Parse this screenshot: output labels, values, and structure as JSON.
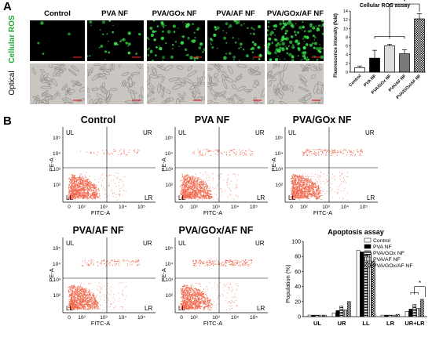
{
  "panelA": {
    "letter": "A",
    "columns": [
      "Control",
      "PVA NF",
      "PVA/GOx NF",
      "PVA/AF NF",
      "PVA/GOx/AF NF"
    ],
    "row_ros": "Cellular ROS",
    "row_optical": "Optical",
    "colors": {
      "ros_label": "#22aa33",
      "fluorescence": "#39e04a",
      "scale_bar": "#dd2222"
    }
  },
  "panelB": {
    "letter": "B",
    "flow_titles": [
      "Control",
      "PVA NF",
      "PVA/GOx NF",
      "PVA/AF NF",
      "PVA/GOx/AF NF"
    ],
    "quadrants": {
      "ul": "UL",
      "ur": "UR",
      "ll": "LL",
      "lr": "LR"
    },
    "xlabel": "FITC-A",
    "ylabel": "PE-A",
    "ticks": {
      "t0": "0",
      "t2": "10²",
      "t3": "10³",
      "t4": "10⁴",
      "t5": "10⁵"
    },
    "dot_color": "#f26a4f"
  },
  "chart_data": [
    {
      "type": "bar",
      "title": "Cellular ROS assay",
      "ylabel": "Fluorescence intensity (fold)",
      "ylim": [
        0,
        14
      ],
      "yticks": [
        0,
        2,
        4,
        6,
        8,
        10,
        12,
        14
      ],
      "categories": [
        "Control",
        "PVA NF",
        "PVA/GOx NF",
        "PVA/AF NF",
        "PVA/GOx/AF NF"
      ],
      "values": [
        1.0,
        3.2,
        6.0,
        4.2,
        12.2
      ],
      "errors": [
        0.4,
        1.8,
        0.4,
        0.9,
        1.2
      ],
      "significance": "*"
    },
    {
      "type": "bar",
      "title": "Apoptosis assay",
      "ylabel": "Population (%)",
      "ylim": [
        0,
        100
      ],
      "yticks": [
        0,
        20,
        40,
        60,
        80,
        100
      ],
      "categories": [
        "UL",
        "UR",
        "LL",
        "LR",
        "UR+LR"
      ],
      "series": [
        {
          "name": "Control",
          "values": [
            2,
            5,
            88,
            2,
            7
          ]
        },
        {
          "name": "PVA NF",
          "values": [
            2,
            8,
            86,
            2,
            10
          ]
        },
        {
          "name": "PVA/GOx NF",
          "values": [
            2,
            14,
            82,
            2,
            16
          ]
        },
        {
          "name": "PVA/AF NF",
          "values": [
            2,
            9,
            85,
            2,
            11
          ]
        },
        {
          "name": "PVA/GOx/AF NF",
          "values": [
            2,
            20,
            74,
            3,
            23
          ]
        }
      ],
      "significance": "*"
    }
  ]
}
